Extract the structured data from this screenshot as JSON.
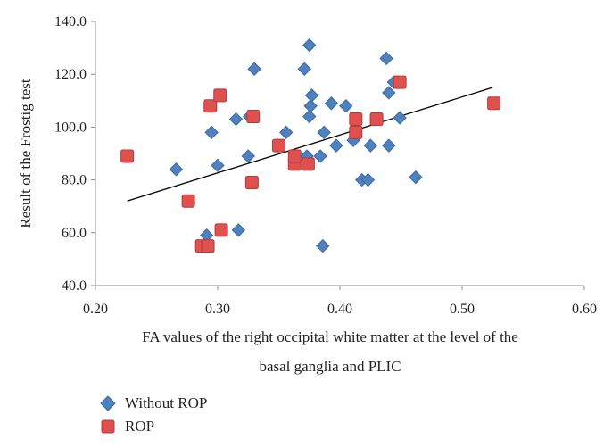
{
  "chart_data": {
    "type": "scatter",
    "title": "",
    "xlabel_lines": [
      "FA values of the right occipital white matter at the level of the",
      "basal ganglia and PLIC"
    ],
    "ylabel": "Result of the Frostig test",
    "xlim": [
      0.2,
      0.6
    ],
    "ylim": [
      40,
      140
    ],
    "x_ticks": [
      "0.20",
      "0.30",
      "0.40",
      "0.50",
      "0.60"
    ],
    "y_ticks": [
      "40.0",
      "60.0",
      "80.0",
      "100.0",
      "120.0",
      "140.0"
    ],
    "grid": false,
    "legend_placement": "bottom-left",
    "series": [
      {
        "name": "Without ROP",
        "marker": "diamond",
        "color": "#4f81bd",
        "points": [
          [
            0.266,
            84
          ],
          [
            0.291,
            59
          ],
          [
            0.295,
            98
          ],
          [
            0.3,
            85.5
          ],
          [
            0.315,
            103
          ],
          [
            0.317,
            61
          ],
          [
            0.325,
            89
          ],
          [
            0.326,
            104
          ],
          [
            0.33,
            122
          ],
          [
            0.356,
            98
          ],
          [
            0.371,
            122
          ],
          [
            0.373,
            89
          ],
          [
            0.375,
            131
          ],
          [
            0.375,
            104
          ],
          [
            0.376,
            108
          ],
          [
            0.377,
            112
          ],
          [
            0.384,
            89
          ],
          [
            0.386,
            55
          ],
          [
            0.387,
            98
          ],
          [
            0.393,
            109
          ],
          [
            0.397,
            93
          ],
          [
            0.405,
            108
          ],
          [
            0.411,
            95
          ],
          [
            0.418,
            80
          ],
          [
            0.423,
            80
          ],
          [
            0.425,
            93
          ],
          [
            0.438,
            126
          ],
          [
            0.44,
            93
          ],
          [
            0.44,
            113
          ],
          [
            0.444,
            117
          ],
          [
            0.449,
            103.5
          ],
          [
            0.462,
            81
          ]
        ]
      },
      {
        "name": "ROP",
        "marker": "square",
        "color": "#e0504f",
        "points": [
          [
            0.226,
            89
          ],
          [
            0.276,
            72
          ],
          [
            0.287,
            55
          ],
          [
            0.292,
            55
          ],
          [
            0.294,
            108
          ],
          [
            0.302,
            112
          ],
          [
            0.303,
            61
          ],
          [
            0.328,
            79
          ],
          [
            0.329,
            104
          ],
          [
            0.35,
            93
          ],
          [
            0.363,
            86
          ],
          [
            0.363,
            89
          ],
          [
            0.374,
            86
          ],
          [
            0.413,
            98
          ],
          [
            0.413,
            103
          ],
          [
            0.43,
            103
          ],
          [
            0.449,
            117
          ],
          [
            0.526,
            109
          ]
        ]
      }
    ],
    "trendline": {
      "x": [
        0.226,
        0.525
      ],
      "y": [
        72,
        115
      ]
    }
  }
}
